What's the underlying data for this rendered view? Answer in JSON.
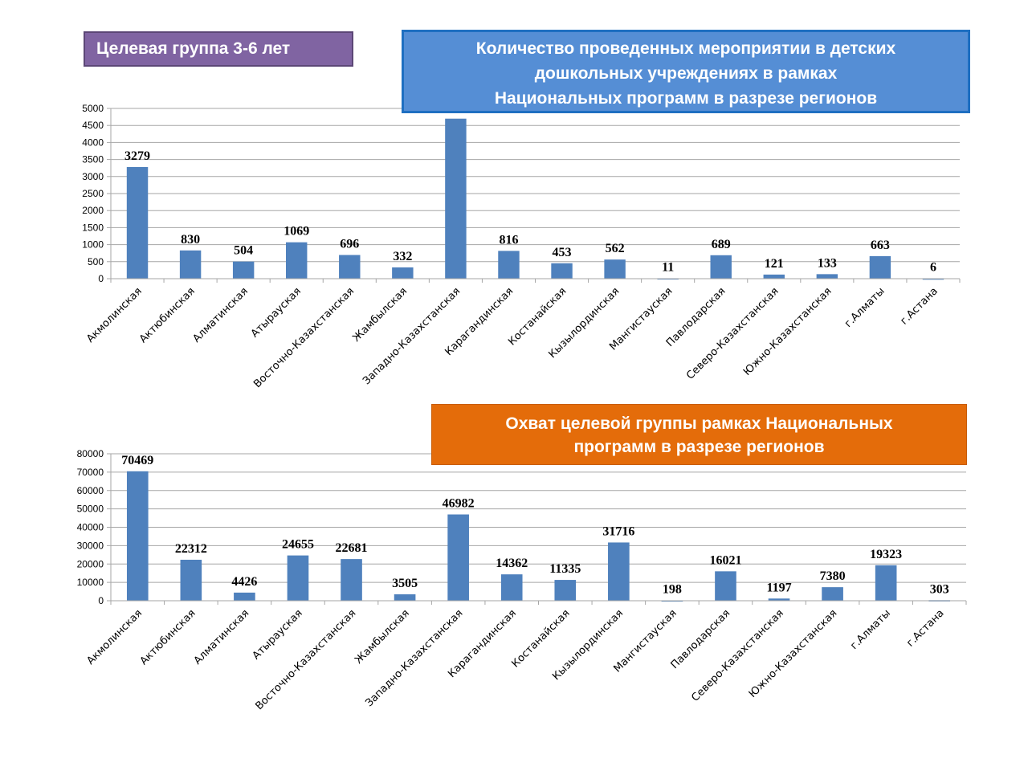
{
  "header": {
    "age_group_badge": "Целевая группа 3-6 лет"
  },
  "colors": {
    "bar": "#4f81bd",
    "grid": "#a6a6a6",
    "badge_purple": "#8064a2",
    "title_blue": "#558ed5",
    "title_orange": "#e46c0a"
  },
  "chart_data": [
    {
      "type": "bar",
      "title_lines": [
        "Количество проведенных мероприятии в детских",
        "дошкольных учреждениях в рамках",
        "Национальных программ в разрезе  регионов"
      ],
      "xlabel": "",
      "ylabel": "",
      "ylim": [
        0,
        5000
      ],
      "yticks": [
        0,
        500,
        1000,
        1500,
        2000,
        2500,
        3000,
        3500,
        4000,
        4500,
        5000
      ],
      "grid": true,
      "legend": "none",
      "categories": [
        "Акмолинская",
        "Актюбинская",
        "Алматинская",
        "Атырауская",
        "Восточно-Казахстанская",
        "Жамбылская",
        "Западно-Казахстанская",
        "Карагандинская",
        "Костанайская",
        "Кызылординская",
        "Мангистауская",
        "Павлодарская",
        "Северо-Казахстанская",
        "Южно-Казахстанская",
        "г.Алматы",
        "г.Астана"
      ],
      "values": [
        3279,
        830,
        504,
        1069,
        696,
        332,
        4700,
        816,
        453,
        562,
        11,
        689,
        121,
        133,
        663,
        6
      ],
      "data_labels": [
        "3279",
        "830",
        "504",
        "1069",
        "696",
        "332",
        "",
        "816",
        "453",
        "562",
        "11",
        "689",
        "121",
        "133",
        "663",
        "6"
      ]
    },
    {
      "type": "bar",
      "title_lines": [
        "Охват целевой группы  рамках Национальных",
        "программ в разрезе регионов"
      ],
      "xlabel": "",
      "ylabel": "",
      "ylim": [
        0,
        80000
      ],
      "yticks": [
        0,
        10000,
        20000,
        30000,
        40000,
        50000,
        60000,
        70000,
        80000
      ],
      "grid": true,
      "legend": "none",
      "categories": [
        "Акмолинская",
        "Актюбинская",
        "Алматинская",
        "Атырауская",
        "Восточно-Казахстанская",
        "Жамбылская",
        "Западно-Казахстанская",
        "Карагандинская",
        "Костанайская",
        "Кызылординская",
        "Мангистауская",
        "Павлодарская",
        "Северо-Казахстанская",
        "Южно-Казахстанская",
        "г.Алматы",
        "г.Астана"
      ],
      "values": [
        70469,
        22312,
        4426,
        24655,
        22681,
        3505,
        46982,
        14362,
        11335,
        31716,
        198,
        16021,
        1197,
        7380,
        19323,
        303
      ],
      "data_labels": [
        "70469",
        "22312",
        "4426",
        "24655",
        "22681",
        "3505",
        "46982",
        "14362",
        "11335",
        "31716",
        "198",
        "16021",
        "1197",
        "7380",
        "19323",
        "303"
      ]
    }
  ]
}
